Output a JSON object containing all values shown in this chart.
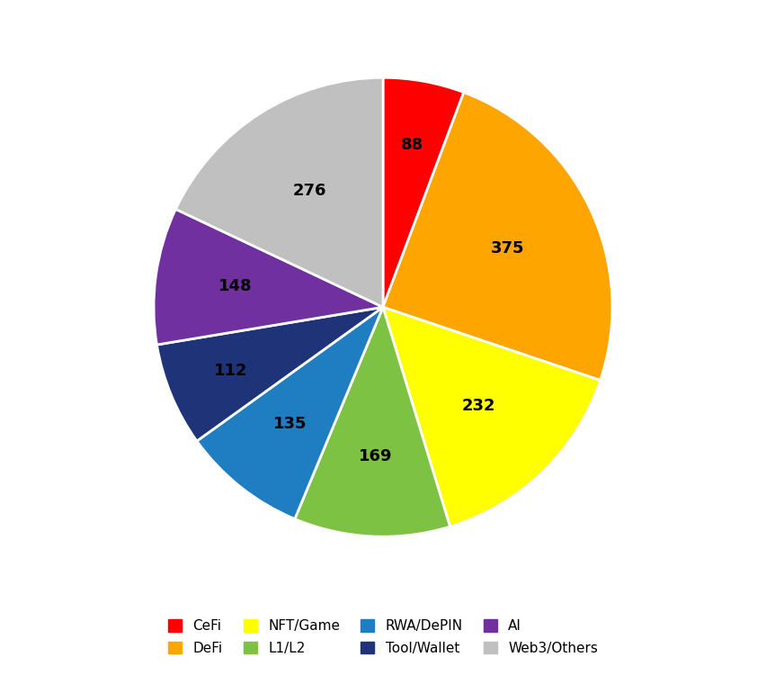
{
  "labels": [
    "CeFi",
    "DeFi",
    "NFT/Game",
    "L1/L2",
    "RWA/DePIN",
    "Tool/Wallet",
    "AI",
    "Web3/Others"
  ],
  "values": [
    88,
    375,
    232,
    169,
    135,
    112,
    148,
    276
  ],
  "colors": [
    "#FF0000",
    "#FFA500",
    "#FFFF00",
    "#7DC242",
    "#1F7EC2",
    "#1F3478",
    "#7030A0",
    "#C0C0C0"
  ],
  "startangle": 90,
  "background_color": "#FFFFFF",
  "text_color": "#000000",
  "legend_fontsize": 11,
  "value_fontsize": 13
}
